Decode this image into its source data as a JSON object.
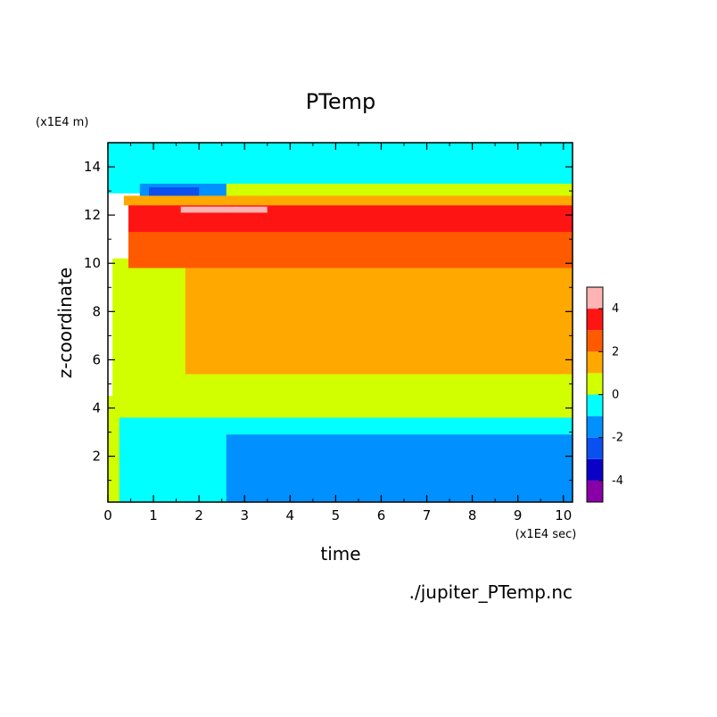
{
  "chart_data": {
    "type": "heatmap",
    "title": "PTemp",
    "xlabel": "time",
    "ylabel": "z-coordinate",
    "x_unit": "(x1E4 sec)",
    "y_unit": "(x1E4 m)",
    "footer": "./jupiter_PTemp.nc",
    "xlim": [
      0,
      10.2
    ],
    "ylim": [
      0.1,
      15
    ],
    "xticks": [
      0,
      1,
      2,
      3,
      4,
      5,
      6,
      7,
      8,
      9,
      10
    ],
    "yticks": [
      2,
      4,
      6,
      8,
      10,
      12,
      14
    ],
    "colorbar": {
      "levels": [
        -5,
        -4,
        -3,
        -2,
        -1,
        0,
        1,
        2,
        3,
        4,
        5
      ],
      "colors": [
        "#8a00a8",
        "#0a00c8",
        "#0a50f0",
        "#0090ff",
        "#00ffff",
        "#d2ff00",
        "#ffa800",
        "#ff5a00",
        "#ff1414",
        "#ffb4b4"
      ],
      "tick_labels": [
        "-4",
        "-2",
        "0",
        "2",
        "4"
      ],
      "tick_values": [
        -4,
        -2,
        0,
        2,
        4
      ]
    },
    "regions": [
      {
        "level": -1,
        "x": [
          0,
          10.2
        ],
        "y": [
          12.9,
          15
        ]
      },
      {
        "level": 0,
        "x": [
          0.9,
          10.2
        ],
        "y": [
          12.75,
          13.3
        ]
      },
      {
        "level": -2,
        "x": [
          0.7,
          2.6
        ],
        "y": [
          12.7,
          13.3
        ]
      },
      {
        "level": -3,
        "x": [
          0.9,
          2.0
        ],
        "y": [
          12.8,
          13.15
        ]
      },
      {
        "level": 1,
        "x": [
          0.35,
          10.2
        ],
        "y": [
          12.4,
          12.8
        ]
      },
      {
        "level": 0,
        "x": [
          0.1,
          10.2
        ],
        "y": [
          3.5,
          10.2
        ]
      },
      {
        "level": 1,
        "x": [
          1.7,
          10.2
        ],
        "y": [
          5.4,
          9.8
        ]
      },
      {
        "level": 2,
        "x": [
          0.45,
          10.2
        ],
        "y": [
          9.8,
          12.4
        ]
      },
      {
        "level": 3,
        "x": [
          0.45,
          10.2
        ],
        "y": [
          11.3,
          12.4
        ]
      },
      {
        "level": 4,
        "x": [
          1.6,
          3.5
        ],
        "y": [
          12.1,
          12.35
        ]
      },
      {
        "level": -1,
        "x": [
          0,
          10.2
        ],
        "y": [
          0.1,
          3.6
        ]
      },
      {
        "level": -2,
        "x": [
          2.6,
          10.2
        ],
        "y": [
          0.1,
          2.9
        ]
      },
      {
        "level": 0,
        "x": [
          0,
          0.25
        ],
        "y": [
          0.1,
          4.5
        ]
      }
    ]
  }
}
